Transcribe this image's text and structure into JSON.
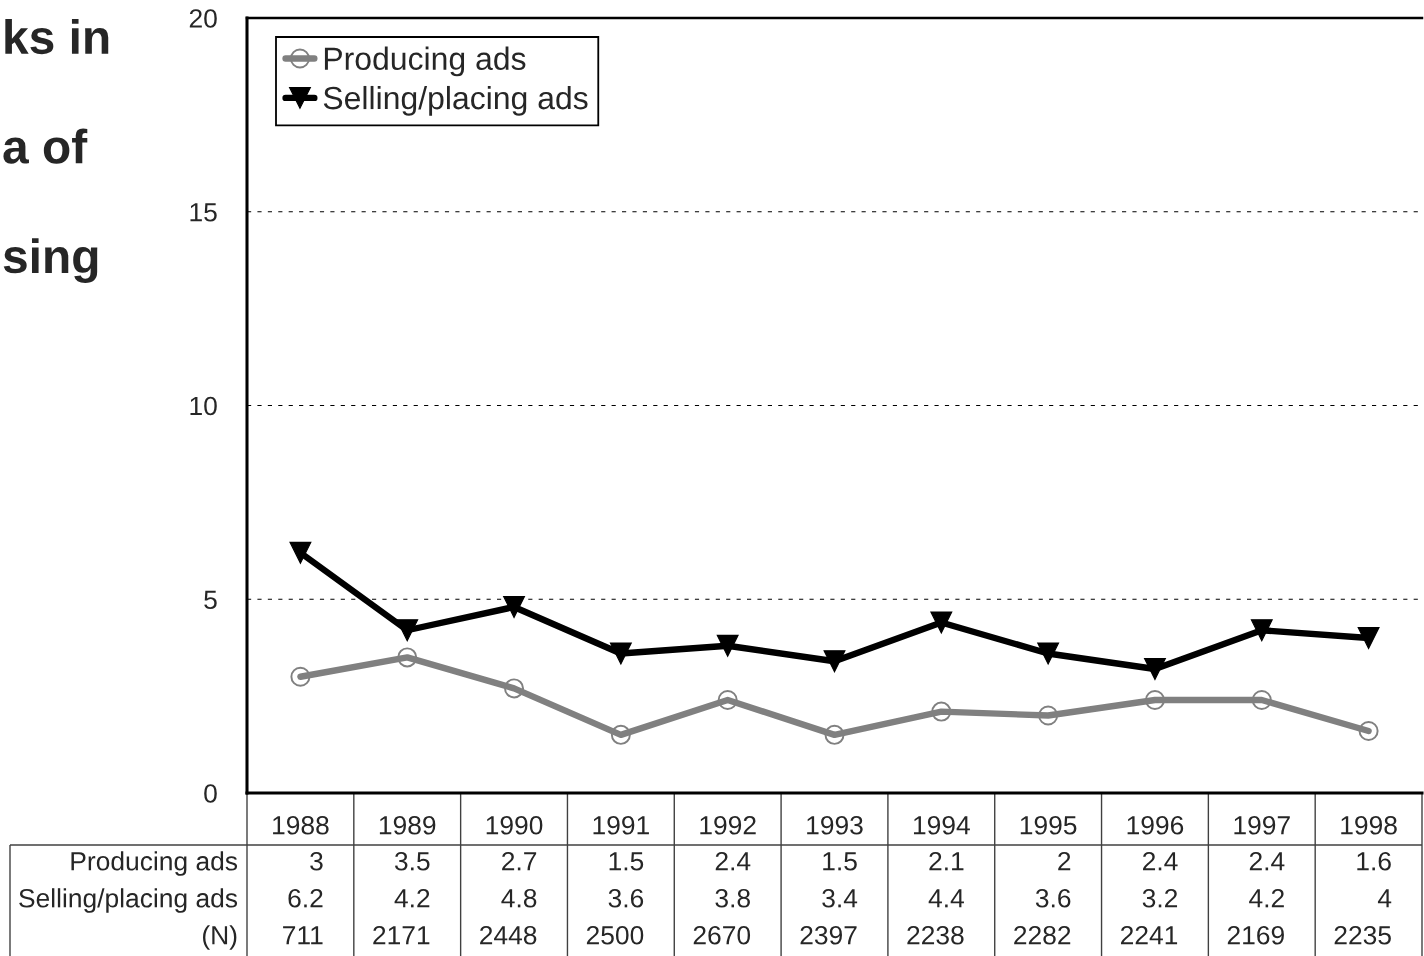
{
  "chart_data": {
    "type": "line",
    "title": "ks in\na of\nsing",
    "categories": [
      "1988",
      "1989",
      "1990",
      "1991",
      "1992",
      "1993",
      "1994",
      "1995",
      "1996",
      "1997",
      "1998"
    ],
    "series": [
      {
        "name": "Producing ads",
        "color": "#808080",
        "marker": "circle",
        "values": [
          3,
          3.5,
          2.7,
          1.5,
          2.4,
          1.5,
          2.1,
          2,
          2.4,
          2.4,
          1.6
        ]
      },
      {
        "name": "Selling/placing ads",
        "color": "#000000",
        "marker": "triangle",
        "values": [
          6.2,
          4.2,
          4.8,
          3.6,
          3.8,
          3.4,
          4.4,
          3.6,
          3.2,
          4.2,
          4
        ]
      }
    ],
    "annotations": [
      "(N)",
      "711",
      "2171",
      "2448",
      "2500",
      "2670",
      "2397",
      "2238",
      "2282",
      "2241",
      "2169",
      "2235"
    ],
    "ylim": [
      0,
      20
    ],
    "yticks": [
      0,
      5,
      10,
      15,
      20
    ],
    "grid": "y",
    "legend": "top left",
    "line_style": "solid",
    "data_labels": true
  }
}
